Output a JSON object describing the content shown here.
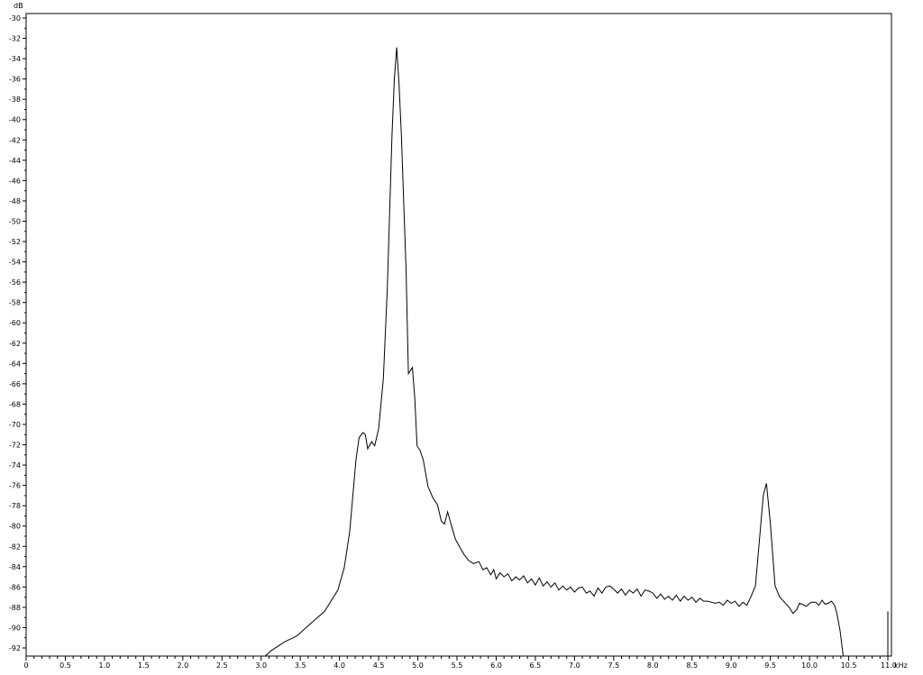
{
  "chart_data": {
    "type": "line",
    "title": "",
    "ylabel": "dB",
    "xunit": "kHz",
    "xlim": [
      0,
      11.0
    ],
    "ylim": [
      -92.8,
      -29.6
    ],
    "grid": false,
    "x_ticks": [
      "0",
      "0.5",
      "1.0",
      "1.5",
      "2.0",
      "2.5",
      "3.0",
      "3.5",
      "4.0",
      "4.5",
      "5.0",
      "5.5",
      "6.0",
      "6.5",
      "7.0",
      "7.5",
      "8.0",
      "8.5",
      "9.0",
      "9.5",
      "10.0",
      "10.5",
      "11.0"
    ],
    "y_ticks": [
      "-30",
      "-32",
      "-34",
      "-36",
      "-38",
      "-40",
      "-42",
      "-44",
      "-46",
      "-48",
      "-50",
      "-52",
      "-54",
      "-56",
      "-58",
      "-60",
      "-62",
      "-64",
      "-66",
      "-68",
      "-70",
      "-72",
      "-74",
      "-76",
      "-78",
      "-80",
      "-82",
      "-84",
      "-86",
      "-88",
      "-90",
      "-92"
    ],
    "line_color": "#000000",
    "series": [
      {
        "points": [
          [
            3.0,
            -93.2
          ],
          [
            3.12,
            -92.3
          ],
          [
            3.3,
            -91.4
          ],
          [
            3.46,
            -90.8
          ],
          [
            3.6,
            -89.8
          ],
          [
            3.81,
            -88.4
          ],
          [
            3.98,
            -86.3
          ],
          [
            4.06,
            -84.1
          ],
          [
            4.13,
            -80.6
          ],
          [
            4.21,
            -73.5
          ],
          [
            4.25,
            -71.3
          ],
          [
            4.3,
            -70.8
          ],
          [
            4.33,
            -71.0
          ],
          [
            4.36,
            -72.4
          ],
          [
            4.41,
            -71.7
          ],
          [
            4.45,
            -72.1
          ],
          [
            4.5,
            -70.4
          ],
          [
            4.56,
            -65.5
          ],
          [
            4.61,
            -56.6
          ],
          [
            4.67,
            -41.5
          ],
          [
            4.7,
            -36.0
          ],
          [
            4.73,
            -32.9
          ],
          [
            4.76,
            -36.5
          ],
          [
            4.79,
            -41.5
          ],
          [
            4.85,
            -54.8
          ],
          [
            4.88,
            -65.0
          ],
          [
            4.93,
            -64.4
          ],
          [
            4.96,
            -67.3
          ],
          [
            4.99,
            -72.1
          ],
          [
            5.03,
            -72.6
          ],
          [
            5.07,
            -73.5
          ],
          [
            5.13,
            -76.1
          ],
          [
            5.19,
            -77.2
          ],
          [
            5.25,
            -77.9
          ],
          [
            5.3,
            -79.5
          ],
          [
            5.34,
            -79.8
          ],
          [
            5.38,
            -78.6
          ],
          [
            5.43,
            -80.0
          ],
          [
            5.48,
            -81.3
          ],
          [
            5.53,
            -82.0
          ],
          [
            5.59,
            -82.8
          ],
          [
            5.65,
            -83.4
          ],
          [
            5.71,
            -83.7
          ],
          [
            5.78,
            -83.5
          ],
          [
            5.83,
            -84.3
          ],
          [
            5.88,
            -84.1
          ],
          [
            5.93,
            -84.8
          ],
          [
            5.97,
            -84.3
          ],
          [
            6.0,
            -85.2
          ],
          [
            6.05,
            -84.6
          ],
          [
            6.1,
            -85.0
          ],
          [
            6.15,
            -84.7
          ],
          [
            6.2,
            -85.4
          ],
          [
            6.25,
            -85.0
          ],
          [
            6.3,
            -85.3
          ],
          [
            6.35,
            -84.9
          ],
          [
            6.4,
            -85.6
          ],
          [
            6.45,
            -85.2
          ],
          [
            6.5,
            -85.8
          ],
          [
            6.55,
            -85.1
          ],
          [
            6.6,
            -85.9
          ],
          [
            6.65,
            -85.5
          ],
          [
            6.7,
            -86.0
          ],
          [
            6.75,
            -85.6
          ],
          [
            6.8,
            -86.3
          ],
          [
            6.85,
            -85.9
          ],
          [
            6.9,
            -86.3
          ],
          [
            6.95,
            -86.0
          ],
          [
            7.0,
            -86.5
          ],
          [
            7.05,
            -86.1
          ],
          [
            7.1,
            -86.0
          ],
          [
            7.15,
            -86.6
          ],
          [
            7.2,
            -86.4
          ],
          [
            7.25,
            -86.9
          ],
          [
            7.3,
            -86.1
          ],
          [
            7.35,
            -86.6
          ],
          [
            7.4,
            -86.0
          ],
          [
            7.45,
            -85.9
          ],
          [
            7.5,
            -86.2
          ],
          [
            7.55,
            -86.6
          ],
          [
            7.6,
            -86.2
          ],
          [
            7.65,
            -86.8
          ],
          [
            7.7,
            -86.3
          ],
          [
            7.75,
            -86.6
          ],
          [
            7.8,
            -86.2
          ],
          [
            7.85,
            -86.9
          ],
          [
            7.9,
            -86.3
          ],
          [
            7.95,
            -86.4
          ],
          [
            8.0,
            -86.6
          ],
          [
            8.05,
            -87.1
          ],
          [
            8.1,
            -86.7
          ],
          [
            8.15,
            -87.2
          ],
          [
            8.2,
            -86.9
          ],
          [
            8.25,
            -87.3
          ],
          [
            8.3,
            -86.8
          ],
          [
            8.35,
            -87.4
          ],
          [
            8.4,
            -86.9
          ],
          [
            8.45,
            -87.3
          ],
          [
            8.5,
            -87.0
          ],
          [
            8.55,
            -87.5
          ],
          [
            8.6,
            -87.1
          ],
          [
            8.65,
            -87.4
          ],
          [
            8.7,
            -87.4
          ],
          [
            8.75,
            -87.5
          ],
          [
            8.8,
            -87.6
          ],
          [
            8.85,
            -87.5
          ],
          [
            8.9,
            -87.8
          ],
          [
            8.95,
            -87.3
          ],
          [
            9.0,
            -87.6
          ],
          [
            9.05,
            -87.4
          ],
          [
            9.1,
            -87.9
          ],
          [
            9.15,
            -87.5
          ],
          [
            9.2,
            -87.8
          ],
          [
            9.25,
            -87.0
          ],
          [
            9.31,
            -85.9
          ],
          [
            9.37,
            -80.6
          ],
          [
            9.41,
            -77.0
          ],
          [
            9.45,
            -75.8
          ],
          [
            9.5,
            -79.7
          ],
          [
            9.56,
            -85.9
          ],
          [
            9.62,
            -87.0
          ],
          [
            9.68,
            -87.5
          ],
          [
            9.74,
            -88.0
          ],
          [
            9.79,
            -88.6
          ],
          [
            9.84,
            -88.2
          ],
          [
            9.87,
            -87.6
          ],
          [
            9.91,
            -87.7
          ],
          [
            9.96,
            -87.9
          ],
          [
            10.02,
            -87.5
          ],
          [
            10.08,
            -87.5
          ],
          [
            10.12,
            -87.8
          ],
          [
            10.16,
            -87.3
          ],
          [
            10.2,
            -87.7
          ],
          [
            10.24,
            -87.6
          ],
          [
            10.28,
            -87.4
          ],
          [
            10.32,
            -87.8
          ],
          [
            10.35,
            -88.6
          ],
          [
            10.39,
            -90.3
          ],
          [
            10.43,
            -92.8
          ],
          [
            10.45,
            -94.0
          ],
          [
            10.99,
            -94.0
          ],
          [
            11.0,
            -92.8
          ],
          [
            11.0,
            -88.4
          ]
        ]
      }
    ]
  }
}
